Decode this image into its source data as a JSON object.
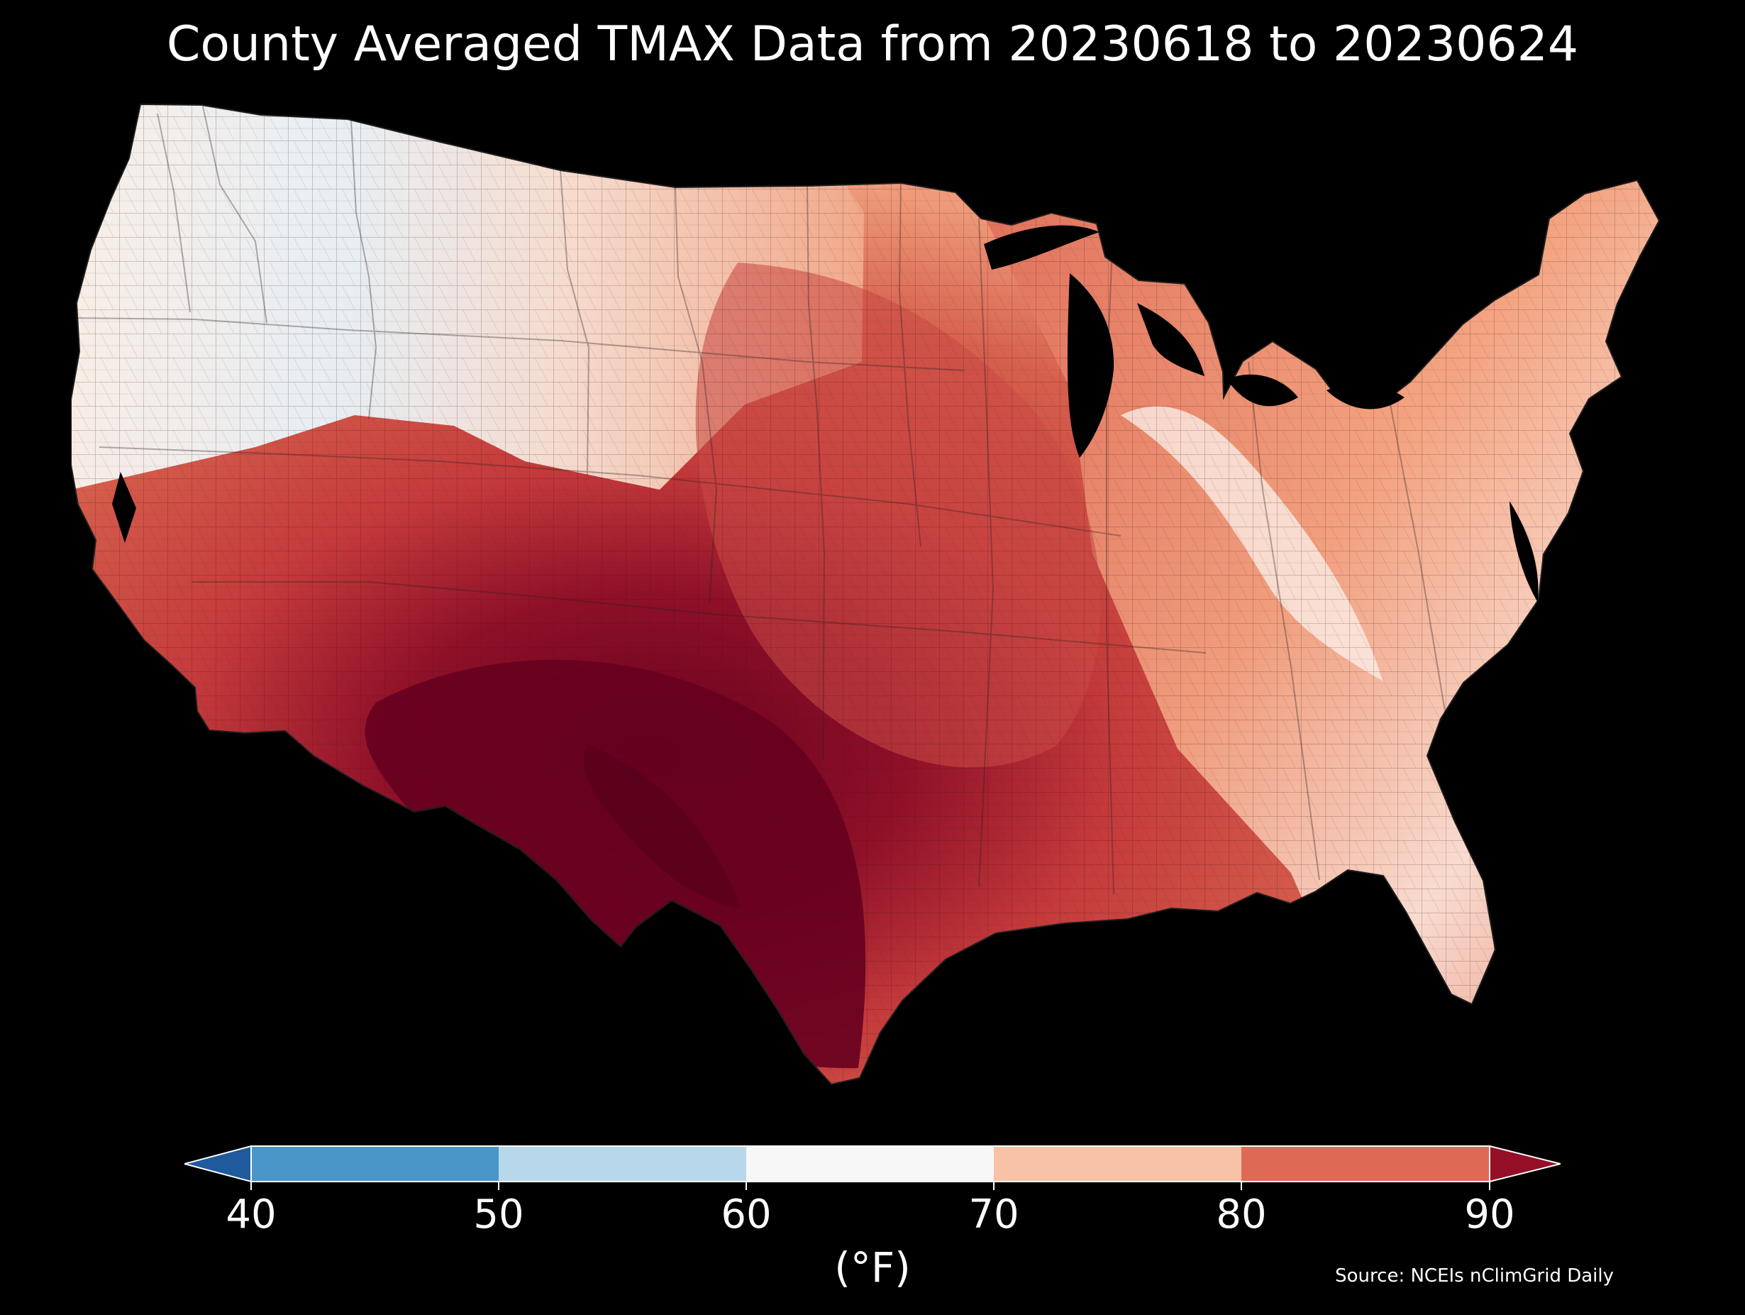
{
  "title": "County Averaged TMAX Data from 20230618 to 20230624",
  "colorbar": {
    "ticks": [
      "40",
      "50",
      "60",
      "70",
      "80",
      "90"
    ],
    "label": "(°F)",
    "extend": "both",
    "bins": [
      {
        "range": "<40",
        "color": "#1f5a9d"
      },
      {
        "range": "40-50",
        "color": "#4b96c8"
      },
      {
        "range": "50-60",
        "color": "#b7d8ea"
      },
      {
        "range": "60-70",
        "color": "#f7f7f7"
      },
      {
        "range": "70-80",
        "color": "#f8c2a6"
      },
      {
        "range": "80-90",
        "color": "#de6a56"
      },
      {
        "range": ">90",
        "color": "#940f27"
      }
    ]
  },
  "source": "Source: NCEIs nClimGrid Daily",
  "map": {
    "region": "Contiguous United States counties",
    "colors": {
      "background": "#000000",
      "very_hot": "#67001f",
      "hot": "#b2182b",
      "warm": "#d6604d",
      "mild": "#f4a582",
      "neutral": "#f7f7f7",
      "cool": "#d1e5f0",
      "cold": "#92c5de"
    }
  }
}
